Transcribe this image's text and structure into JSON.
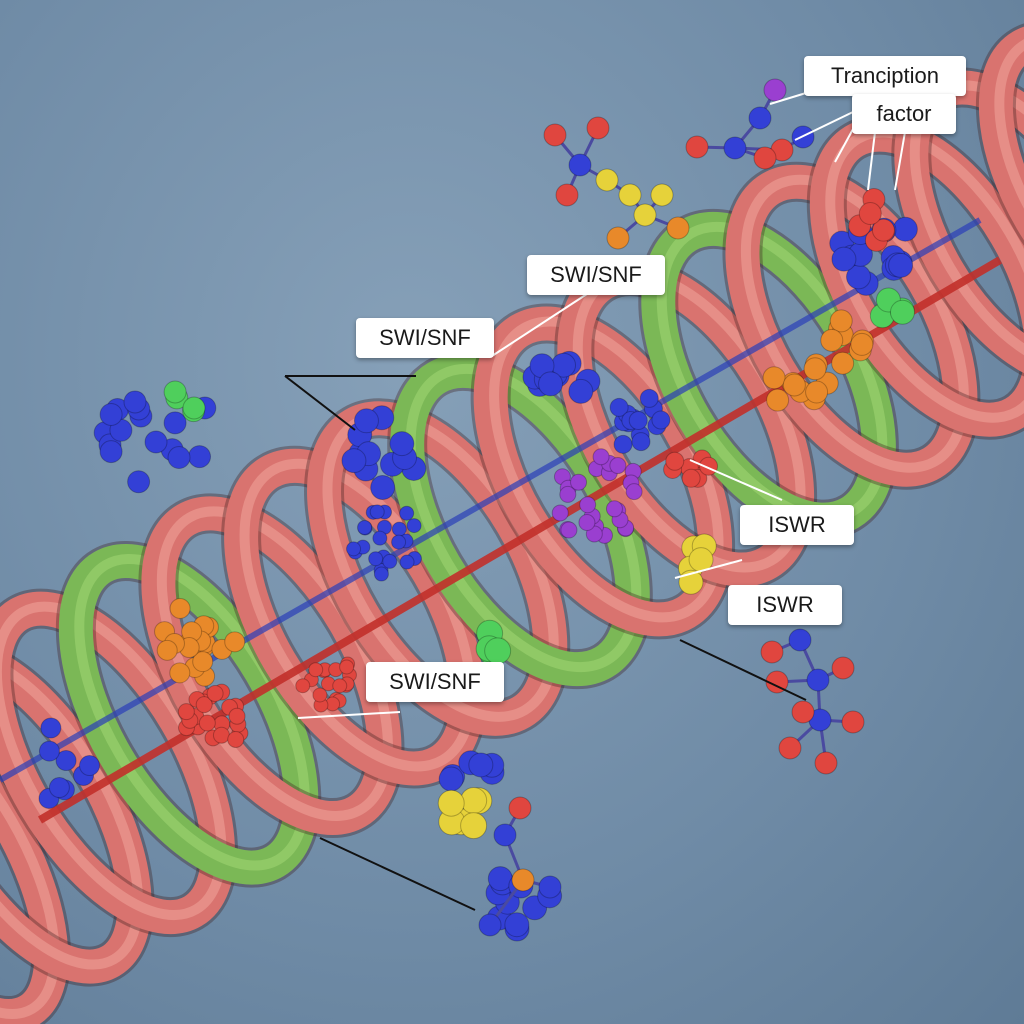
{
  "diagram": {
    "subject": "DNA wrapped around histones with chromatin remodeling complexes",
    "colors": {
      "background": "#6f8ba6",
      "dna_coil": "#d9736f",
      "dna_coil_highlight": "#eb9a92",
      "nucleosome_band": "#7bb856",
      "nucleosome_band_highlight": "#9ad06d",
      "atom_blue": "#3340d6",
      "atom_red": "#e0463f",
      "atom_yellow": "#e6d23a",
      "atom_orange": "#e8892a",
      "atom_green": "#4fcf5c",
      "atom_purple": "#9a3fd0",
      "leader_line_light": "#ffffff",
      "leader_line_dark": "#111111"
    },
    "labels": {
      "transcription_factor": {
        "line1": "Tranciption",
        "line2": "factor"
      },
      "swi_snf_top": "SWI/SNF",
      "swi_snf_mid": "SWI/SNF",
      "swi_snf_low": "SWI/SNF",
      "iswr_upper": "ISWR",
      "iswr_lower": "ISWR"
    }
  }
}
